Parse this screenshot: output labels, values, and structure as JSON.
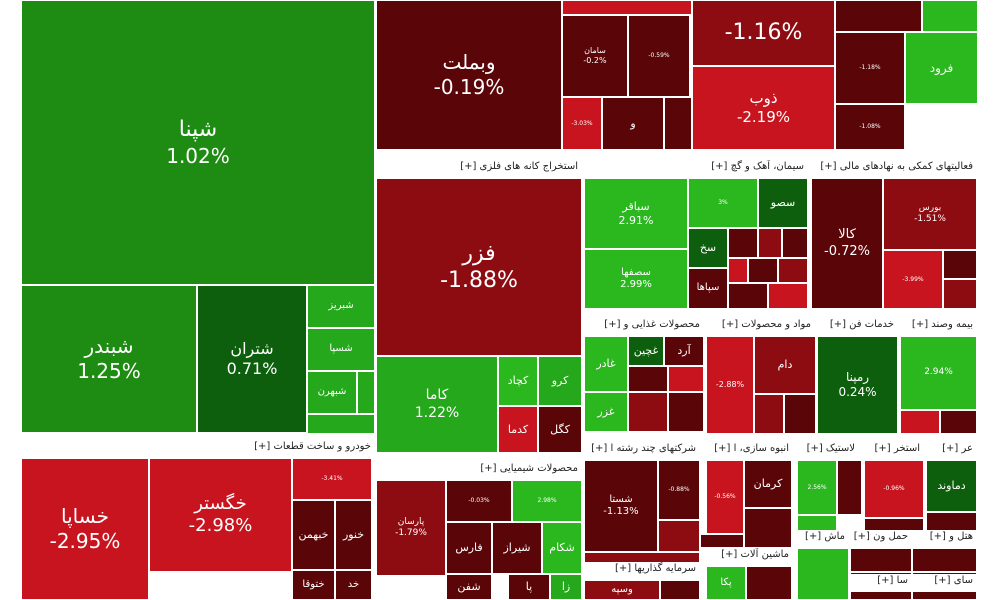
{
  "colors": {
    "strong_green": "#1e8c12",
    "green": "#25a81b",
    "light_green": "#2bb81f",
    "dark_green": "#0d5f0d",
    "red": "#c8141e",
    "dark_red": "#8c0c12",
    "darker_red": "#5a0508",
    "header_bg": "#ffffff"
  },
  "sections": {
    "metal_mining": "استخراج کانه های فلزی [+]",
    "cement": "سیمان، آهک و گچ [+]",
    "financial_aux": "فعالیتهای کمکی به نهادهای مالی [+]",
    "food": "محصولات غذایی و [+]",
    "materials": "مواد و محصولات [+]",
    "tech_services": "خدمات فن [+]",
    "insurance": "بیمه وصند [+]",
    "auto": "خودرو و ساخت قطعات [+]",
    "chemical": "محصولات شیمیایی [+]",
    "multi_industry": "شرکتهای چند رشته ا [+]",
    "mass_building": "انبوه سازی، ا [+]",
    "plastic": "لاستیک [+]",
    "extraction": "استخر [+]",
    "misc_a": "عر [+]",
    "investment": "سرمایه گذاریها [+]",
    "machinery": "ماشین آلات [+]",
    "misc_b": "ماش [+]",
    "transport": "حمل ون [+]",
    "hotel": "هتل و [+]",
    "misc_c": "سا [+]",
    "misc_d": "سای [+]"
  },
  "chart_data": {
    "type": "treemap",
    "metric": "percent change",
    "tiles": [
      {
        "id": "shpna",
        "symbol": "شپنا",
        "change": "1.02%",
        "value": 1.02
      },
      {
        "id": "shbandar",
        "symbol": "شبندر",
        "change": "1.25%",
        "value": 1.25
      },
      {
        "id": "shtran",
        "symbol": "شتران",
        "change": "0.71%",
        "value": 0.71
      },
      {
        "id": "shbriz",
        "symbol": "شبریز",
        "change": "",
        "value": null
      },
      {
        "id": "shsepa",
        "symbol": "شسپا",
        "change": "",
        "value": null
      },
      {
        "id": "shbahran",
        "symbol": "شبهرن",
        "change": "",
        "value": null
      },
      {
        "id": "vbmellat",
        "symbol": "وبملت",
        "change": "-0.19%",
        "value": -0.19
      },
      {
        "id": "saman",
        "symbol": "سامان",
        "change": "-0.2%",
        "value": -0.2
      },
      {
        "id": "top_small1",
        "symbol": "",
        "change": "-0.59%",
        "value": -0.59
      },
      {
        "id": "top_small2",
        "symbol": "",
        "change": "-3.03%",
        "value": -3.03
      },
      {
        "id": "top_small3",
        "symbol": "و",
        "change": "",
        "value": null
      },
      {
        "id": "top_pct",
        "symbol": "",
        "change": "-1.16%",
        "value": -1.16
      },
      {
        "id": "top_small4",
        "symbol": "",
        "change": "-1.18%",
        "value": -1.18
      },
      {
        "id": "top_small5",
        "symbol": "",
        "change": "-1.08%",
        "value": -1.08
      },
      {
        "id": "zob",
        "symbol": "ذوب",
        "change": "-2.19%",
        "value": -2.19
      },
      {
        "id": "faroud",
        "symbol": "فرود",
        "change": "",
        "value": null
      },
      {
        "id": "fazar",
        "symbol": "فزر",
        "change": "-1.88%",
        "value": -1.88
      },
      {
        "id": "kama",
        "symbol": "کاما",
        "change": "1.22%",
        "value": 1.22
      },
      {
        "id": "kchad",
        "symbol": "کچاد",
        "change": "",
        "value": null
      },
      {
        "id": "kro",
        "symbol": "کرو",
        "change": "",
        "value": null
      },
      {
        "id": "kgol",
        "symbol": "کگل",
        "change": "",
        "value": null
      },
      {
        "id": "kdama",
        "symbol": "کدما",
        "change": "",
        "value": null
      },
      {
        "id": "sbaqer",
        "symbol": "سباقر",
        "change": "2.91%",
        "value": 2.91
      },
      {
        "id": "sesfaha",
        "symbol": "سصفها",
        "change": "2.99%",
        "value": 2.99
      },
      {
        "id": "ssoo",
        "symbol": "سصو",
        "change": "",
        "value": null
      },
      {
        "id": "cement_small",
        "symbol": "",
        "change": "3%",
        "value": 3
      },
      {
        "id": "sakh",
        "symbol": "سخ",
        "change": "",
        "value": null
      },
      {
        "id": "sepaha",
        "symbol": "سپاها",
        "change": "",
        "value": null
      },
      {
        "id": "kala",
        "symbol": "کالا",
        "change": "-0.72%",
        "value": -0.72
      },
      {
        "id": "boors",
        "symbol": "بورس",
        "change": "-1.51%",
        "value": -1.51
      },
      {
        "id": "fin_small",
        "symbol": "",
        "change": "-3.99%",
        "value": -3.99
      },
      {
        "id": "ghader",
        "symbol": "غادر",
        "change": "",
        "value": null
      },
      {
        "id": "ghchin",
        "symbol": "غچین",
        "change": "",
        "value": null
      },
      {
        "id": "ghard",
        "symbol": "آرد",
        "change": "",
        "value": null
      },
      {
        "id": "ghazar",
        "symbol": "غزر",
        "change": "",
        "value": null
      },
      {
        "id": "dakvaro",
        "symbol": "",
        "change": "-2.88%",
        "value": -2.88
      },
      {
        "id": "dam",
        "symbol": "دام",
        "change": "",
        "value": null
      },
      {
        "id": "rampna",
        "symbol": "رمپنا",
        "change": "0.24%",
        "value": 0.24
      },
      {
        "id": "biyas",
        "symbol": "",
        "change": "2.94%",
        "value": 2.94
      },
      {
        "id": "khasapa",
        "symbol": "خساپا",
        "change": "-2.95%",
        "value": -2.95
      },
      {
        "id": "khgostar",
        "symbol": "خگستر",
        "change": "-2.98%",
        "value": -2.98
      },
      {
        "id": "auto_small",
        "symbol": "",
        "change": "-3.41%",
        "value": -3.41
      },
      {
        "id": "khbahman",
        "symbol": "خبهمن",
        "change": "",
        "value": null
      },
      {
        "id": "khnor",
        "symbol": "خنور",
        "change": "",
        "value": null
      },
      {
        "id": "khtoga",
        "symbol": "ختوقا",
        "change": "",
        "value": null
      },
      {
        "id": "khd",
        "symbol": "خد",
        "change": "",
        "value": null
      },
      {
        "id": "parsan",
        "symbol": "پارسان",
        "change": "-1.79%",
        "value": -1.79
      },
      {
        "id": "chem_small1",
        "symbol": "",
        "change": "-0.03%",
        "value": -0.03
      },
      {
        "id": "chem_small2",
        "symbol": "",
        "change": "2.98%",
        "value": 2.98
      },
      {
        "id": "fars",
        "symbol": "فارس",
        "change": "",
        "value": null
      },
      {
        "id": "shiraz",
        "symbol": "شیراز",
        "change": "",
        "value": null
      },
      {
        "id": "shakam",
        "symbol": "شکام",
        "change": "",
        "value": null
      },
      {
        "id": "shafan",
        "symbol": "شفن",
        "change": "",
        "value": null
      },
      {
        "id": "chem_pa",
        "symbol": "پا",
        "change": "",
        "value": null
      },
      {
        "id": "chem_za",
        "symbol": "زا",
        "change": "",
        "value": null
      },
      {
        "id": "shasta",
        "symbol": "شستا",
        "change": "-1.13%",
        "value": -1.13
      },
      {
        "id": "multi_small",
        "symbol": "",
        "change": "-0.88%",
        "value": -0.88
      },
      {
        "id": "kerman",
        "symbol": "کرمان",
        "change": "",
        "value": null
      },
      {
        "id": "mass_small",
        "symbol": "",
        "change": "-0.56%",
        "value": -0.56
      },
      {
        "id": "plastic_small",
        "symbol": "",
        "change": "2.56%",
        "value": 2.56
      },
      {
        "id": "extract_small",
        "symbol": "",
        "change": "-0.96%",
        "value": -0.96
      },
      {
        "id": "damavand",
        "symbol": "دماوند",
        "change": "",
        "value": null
      },
      {
        "id": "vsepa",
        "symbol": "وسپه",
        "change": "",
        "value": null
      },
      {
        "id": "paka",
        "symbol": "پکا",
        "change": "",
        "value": null
      }
    ]
  }
}
